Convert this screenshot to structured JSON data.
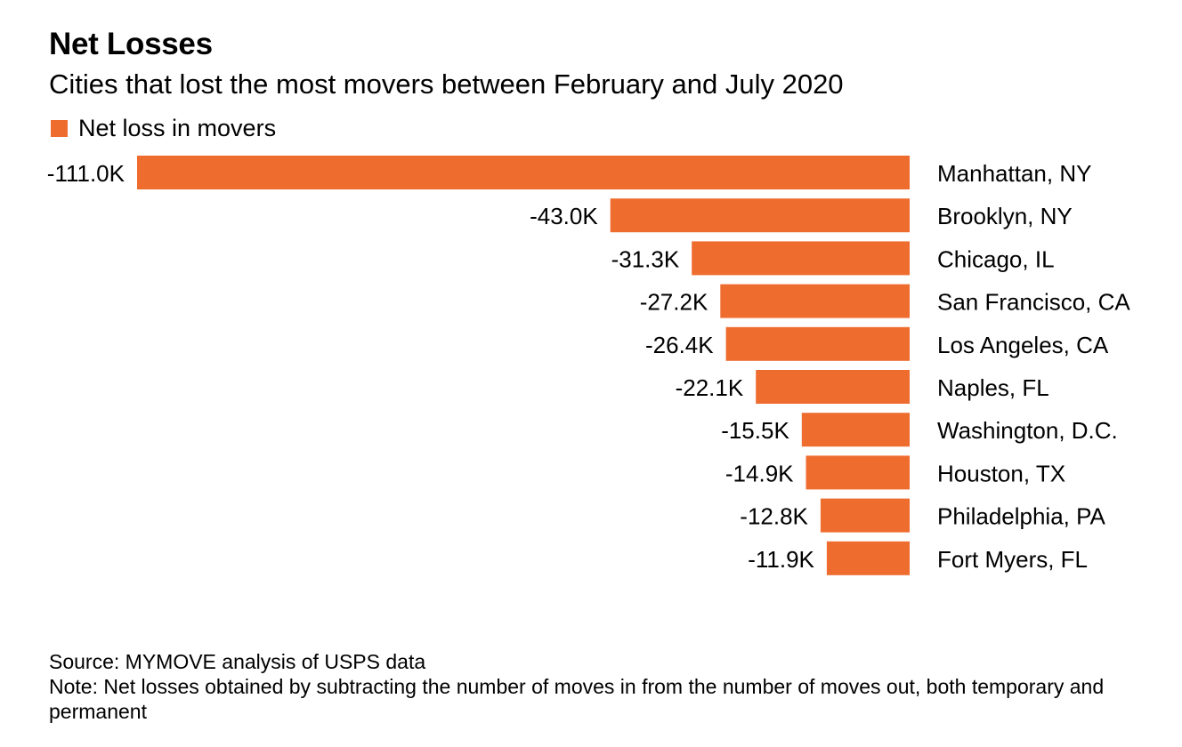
{
  "header": {
    "title": "Net Losses",
    "subtitle": "Cities that lost the most movers between February and July 2020"
  },
  "legend": {
    "label": "Net loss in movers",
    "color": "#EF6C2F"
  },
  "chart_data": {
    "type": "bar",
    "orientation": "horizontal",
    "direction": "negative-left",
    "title": "Net Losses",
    "subtitle": "Cities that lost the most movers between February and July 2020",
    "xlabel": "",
    "ylabel": "",
    "grid": false,
    "legend_position": "top-left",
    "categories": [
      "Manhattan, NY",
      "Brooklyn, NY",
      "Chicago, IL",
      "San Francisco, CA",
      "Los Angeles, CA",
      "Naples, FL",
      "Washington, D.C.",
      "Houston, TX",
      "Philadelphia, PA",
      "Fort Myers, FL"
    ],
    "series": [
      {
        "name": "Net loss in movers",
        "color": "#EF6C2F",
        "values": [
          -111.0,
          -43.0,
          -31.3,
          -27.2,
          -26.4,
          -22.1,
          -15.5,
          -14.9,
          -12.8,
          -11.9
        ],
        "labels": [
          "-111.0K",
          "-43.0K",
          "-31.3K",
          "-27.2K",
          "-26.4K",
          "-22.1K",
          "-15.5K",
          "-14.9K",
          "-12.8K",
          "-11.9K"
        ]
      }
    ],
    "unit": "thousands of movers",
    "xlim": [
      -111.0,
      0
    ]
  },
  "footer": {
    "source": "Source: MYMOVE analysis of USPS data",
    "note": "Note: Net losses obtained by subtracting the number of moves in from the number of moves out, both temporary and permanent"
  }
}
